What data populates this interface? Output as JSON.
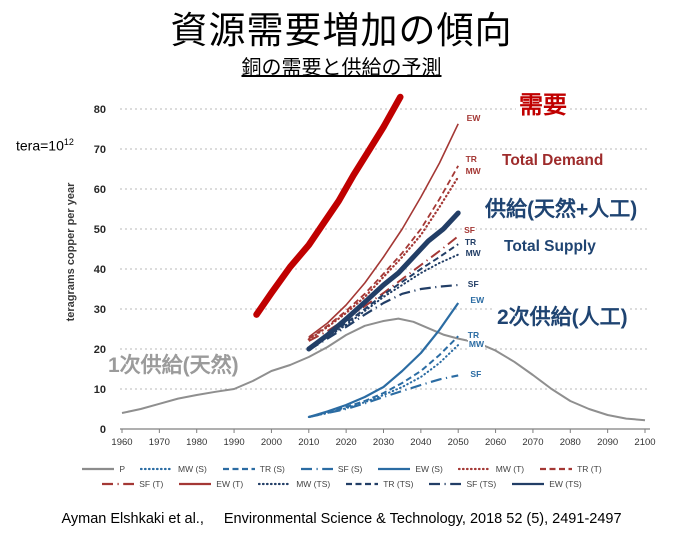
{
  "slide": {
    "title": "資源需要増加の傾向",
    "subtitle": "銅の需要と供給の予測",
    "citation_author": "Ayman Elshkaki et al.,",
    "citation_journal": "Environmental Science & Technology, 2018 52 (5), 2491-2497"
  },
  "annotations": {
    "tera_note": "tera=10",
    "tera_exp": "12",
    "demand_jp": "需要",
    "total_demand": "Total Demand",
    "supply_jp": "供給(天然+人工)",
    "total_supply": "Total Supply",
    "secondary_supply_jp": "2次供給(人工)",
    "primary_supply_jp": "1次供給(天然)"
  },
  "colors": {
    "demand_highlight": "#c00000",
    "demand_lines": "#a43835",
    "demand_text": "#9e2b2b",
    "total_supply_lines": "#223e66",
    "supply_text": "#1f4472",
    "secondary_lines": "#2b6ca3",
    "primary_line": "#8f8f8f",
    "grid": "#b9b9b9"
  },
  "chart_data": {
    "type": "line",
    "ylabel": "teragrams copper per year",
    "xlabel": "",
    "xlim": [
      1960,
      2100
    ],
    "ylim": [
      0,
      80
    ],
    "x_ticks": [
      1960,
      1970,
      1980,
      1990,
      2000,
      2010,
      2020,
      2030,
      2040,
      2050,
      2060,
      2070,
      2080,
      2090,
      2100
    ],
    "y_ticks": [
      0,
      10,
      20,
      30,
      40,
      50,
      60,
      70,
      80
    ],
    "grid": "horizontal-dashed",
    "legend_position": "bottom",
    "series": [
      {
        "id": "P",
        "label": "P",
        "color": "#8f8f8f",
        "width": 2,
        "dash": "solid",
        "points": [
          [
            1960,
            4
          ],
          [
            1965,
            5
          ],
          [
            1970,
            6.3
          ],
          [
            1975,
            7.6
          ],
          [
            1980,
            8.5
          ],
          [
            1985,
            9.3
          ],
          [
            1990,
            10
          ],
          [
            1995,
            12
          ],
          [
            2000,
            14.5
          ],
          [
            2005,
            16
          ],
          [
            2010,
            18
          ],
          [
            2015,
            20.5
          ],
          [
            2020,
            23.5
          ],
          [
            2025,
            25.8
          ],
          [
            2030,
            27
          ],
          [
            2034,
            27.6
          ],
          [
            2038,
            26.8
          ],
          [
            2042,
            25.2
          ],
          [
            2046,
            23.6
          ],
          [
            2050,
            22.6
          ],
          [
            2055,
            21.6
          ],
          [
            2060,
            19.6
          ],
          [
            2065,
            16.8
          ],
          [
            2070,
            13.5
          ],
          [
            2075,
            10
          ],
          [
            2080,
            7
          ],
          [
            2085,
            5
          ],
          [
            2090,
            3.5
          ],
          [
            2095,
            2.6
          ],
          [
            2100,
            2.2
          ]
        ]
      },
      {
        "id": "MW-S",
        "label": "MW (S)",
        "color": "#2b6ca3",
        "width": 2,
        "dash": "dotted",
        "points": [
          [
            2010,
            3
          ],
          [
            2015,
            4
          ],
          [
            2020,
            5.2
          ],
          [
            2025,
            6.7
          ],
          [
            2030,
            8.5
          ],
          [
            2035,
            10.5
          ],
          [
            2040,
            13
          ],
          [
            2045,
            16.5
          ],
          [
            2050,
            21
          ]
        ]
      },
      {
        "id": "TR-S",
        "label": "TR (S)",
        "color": "#2b6ca3",
        "width": 2,
        "dash": "dashed",
        "points": [
          [
            2010,
            3
          ],
          [
            2015,
            4.2
          ],
          [
            2020,
            5.5
          ],
          [
            2025,
            7
          ],
          [
            2030,
            9
          ],
          [
            2035,
            11.5
          ],
          [
            2040,
            14.5
          ],
          [
            2045,
            18.5
          ],
          [
            2050,
            23.2
          ]
        ]
      },
      {
        "id": "SF-S",
        "label": "SF (S)",
        "color": "#2b6ca3",
        "width": 2.2,
        "dash": "longdashdot",
        "points": [
          [
            2010,
            3
          ],
          [
            2015,
            4
          ],
          [
            2020,
            5
          ],
          [
            2025,
            6.4
          ],
          [
            2030,
            8
          ],
          [
            2035,
            9.5
          ],
          [
            2040,
            11
          ],
          [
            2045,
            12.4
          ],
          [
            2050,
            13.4
          ]
        ]
      },
      {
        "id": "EW-S",
        "label": "EW (S)",
        "color": "#2b6ca3",
        "width": 2.2,
        "dash": "solid",
        "points": [
          [
            2010,
            3
          ],
          [
            2015,
            4.4
          ],
          [
            2020,
            6
          ],
          [
            2025,
            8
          ],
          [
            2030,
            10.5
          ],
          [
            2035,
            14.5
          ],
          [
            2040,
            19
          ],
          [
            2045,
            24.8
          ],
          [
            2050,
            31.5
          ]
        ]
      },
      {
        "id": "MW-T",
        "label": "MW (T)",
        "color": "#a43835",
        "width": 2.2,
        "dash": "dotted",
        "points": [
          [
            2010,
            22.4
          ],
          [
            2015,
            25.5
          ],
          [
            2020,
            29
          ],
          [
            2025,
            33
          ],
          [
            2030,
            38
          ],
          [
            2035,
            43
          ],
          [
            2040,
            48.5
          ],
          [
            2045,
            55.5
          ],
          [
            2050,
            63
          ]
        ]
      },
      {
        "id": "TR-T",
        "label": "TR (T)",
        "color": "#a43835",
        "width": 1.8,
        "dash": "dashed",
        "points": [
          [
            2010,
            22.6
          ],
          [
            2015,
            25.8
          ],
          [
            2020,
            29.5
          ],
          [
            2025,
            33.8
          ],
          [
            2030,
            38.8
          ],
          [
            2035,
            44
          ],
          [
            2040,
            50
          ],
          [
            2045,
            57.5
          ],
          [
            2050,
            65.8
          ]
        ]
      },
      {
        "id": "SF-T",
        "label": "SF (T)",
        "color": "#a43835",
        "width": 2,
        "dash": "longdashdot",
        "points": [
          [
            2010,
            22
          ],
          [
            2015,
            24.5
          ],
          [
            2020,
            27.5
          ],
          [
            2025,
            30.7
          ],
          [
            2030,
            34
          ],
          [
            2035,
            37.5
          ],
          [
            2040,
            41
          ],
          [
            2045,
            44.5
          ],
          [
            2050,
            48.2
          ]
        ]
      },
      {
        "id": "EW-T",
        "label": "EW (T)",
        "color": "#a43835",
        "width": 1.6,
        "dash": "solid",
        "points": [
          [
            2010,
            23
          ],
          [
            2015,
            26.5
          ],
          [
            2020,
            31
          ],
          [
            2025,
            36.5
          ],
          [
            2030,
            43
          ],
          [
            2035,
            50
          ],
          [
            2040,
            58
          ],
          [
            2045,
            66.5
          ],
          [
            2050,
            76.3
          ]
        ]
      },
      {
        "id": "MW-TS",
        "label": "MW (TS)",
        "color": "#223e66",
        "width": 2,
        "dash": "dotted",
        "points": [
          [
            2010,
            20
          ],
          [
            2015,
            23
          ],
          [
            2020,
            26
          ],
          [
            2025,
            29.5
          ],
          [
            2030,
            33
          ],
          [
            2035,
            36
          ],
          [
            2040,
            39
          ],
          [
            2045,
            41.5
          ],
          [
            2050,
            43.6
          ]
        ]
      },
      {
        "id": "TR-TS",
        "label": "TR (TS)",
        "color": "#223e66",
        "width": 2,
        "dash": "dashed",
        "points": [
          [
            2010,
            20.2
          ],
          [
            2015,
            23.2
          ],
          [
            2020,
            26.5
          ],
          [
            2025,
            30
          ],
          [
            2030,
            33.6
          ],
          [
            2035,
            36.8
          ],
          [
            2040,
            40
          ],
          [
            2045,
            43
          ],
          [
            2050,
            46.2
          ]
        ]
      },
      {
        "id": "SF-TS",
        "label": "SF (TS)",
        "color": "#223e66",
        "width": 2.2,
        "dash": "longdashdot",
        "points": [
          [
            2010,
            19.8
          ],
          [
            2015,
            22.6
          ],
          [
            2020,
            25.5
          ],
          [
            2025,
            28.6
          ],
          [
            2030,
            31.5
          ],
          [
            2035,
            33.8
          ],
          [
            2040,
            35
          ],
          [
            2045,
            35.6
          ],
          [
            2050,
            36
          ]
        ]
      },
      {
        "id": "EW-TS",
        "label": "EW (TS)",
        "color": "#223e66",
        "width": 5,
        "dash": "solid",
        "points": [
          [
            2010,
            20
          ],
          [
            2015,
            23.5
          ],
          [
            2020,
            27.5
          ],
          [
            2025,
            31.7
          ],
          [
            2030,
            36
          ],
          [
            2034,
            39
          ],
          [
            2038,
            43
          ],
          [
            2042,
            47
          ],
          [
            2046,
            50
          ],
          [
            2050,
            54
          ]
        ]
      },
      {
        "id": "demand-highlight",
        "label": "需要(強調)",
        "color": "#c00000",
        "width": 6.5,
        "dash": "solid",
        "points": [
          [
            1996,
            28.6
          ],
          [
            2000,
            34
          ],
          [
            2005,
            40.5
          ],
          [
            2010,
            46
          ],
          [
            2014,
            51.5
          ],
          [
            2018,
            57
          ],
          [
            2022,
            63.5
          ],
          [
            2026,
            69.5
          ],
          [
            2030,
            75.5
          ],
          [
            2034.5,
            83
          ]
        ]
      }
    ],
    "line_labels": [
      {
        "text": "EW",
        "year": 2052,
        "value": 77.6,
        "color": "#a43835"
      },
      {
        "text": "TR",
        "year": 2051.7,
        "value": 67.2,
        "color": "#a43835"
      },
      {
        "text": "MW",
        "year": 2051.7,
        "value": 64.2,
        "color": "#a43835"
      },
      {
        "text": "SF",
        "year": 2051.3,
        "value": 49.6,
        "color": "#a43835"
      },
      {
        "text": "TR",
        "year": 2051.5,
        "value": 46.4,
        "color": "#223e66"
      },
      {
        "text": "MW",
        "year": 2051.7,
        "value": 43.8,
        "color": "#223e66"
      },
      {
        "text": "SF",
        "year": 2052.3,
        "value": 35.9,
        "color": "#223e66"
      },
      {
        "text": "EW",
        "year": 2053,
        "value": 32.1,
        "color": "#2b6ca3"
      },
      {
        "text": "TR",
        "year": 2052.3,
        "value": 23.3,
        "color": "#2b6ca3"
      },
      {
        "text": "MW",
        "year": 2052.6,
        "value": 20.9,
        "color": "#2b6ca3"
      },
      {
        "text": "SF",
        "year": 2053,
        "value": 13.5,
        "color": "#2b6ca3"
      }
    ],
    "legend": {
      "rows": [
        [
          {
            "label": "P",
            "color": "#8c8c8c",
            "dash": "solid"
          },
          {
            "label": "MW (S)",
            "color": "#2b6ca3",
            "dash": "dotted"
          },
          {
            "label": "TR (S)",
            "color": "#2b6ca3",
            "dash": "dashed"
          },
          {
            "label": "SF (S)",
            "color": "#2b6ca3",
            "dash": "longdashdot"
          },
          {
            "label": "EW (S)",
            "color": "#2b6ca3",
            "dash": "solid"
          },
          {
            "label": "MW (T)",
            "color": "#a43835",
            "dash": "dotted"
          },
          {
            "label": "TR (T)",
            "color": "#a43835",
            "dash": "dashed"
          }
        ],
        [
          {
            "label": "SF (T)",
            "color": "#a43835",
            "dash": "longdashdot"
          },
          {
            "label": "EW (T)",
            "color": "#a43835",
            "dash": "solid"
          },
          {
            "label": "MW (TS)",
            "color": "#223e66",
            "dash": "dotted"
          },
          {
            "label": "TR (TS)",
            "color": "#223e66",
            "dash": "dashed"
          },
          {
            "label": "SF (TS)",
            "color": "#223e66",
            "dash": "longdashdot"
          },
          {
            "label": "EW (TS)",
            "color": "#223e66",
            "dash": "solid"
          }
        ]
      ]
    }
  }
}
